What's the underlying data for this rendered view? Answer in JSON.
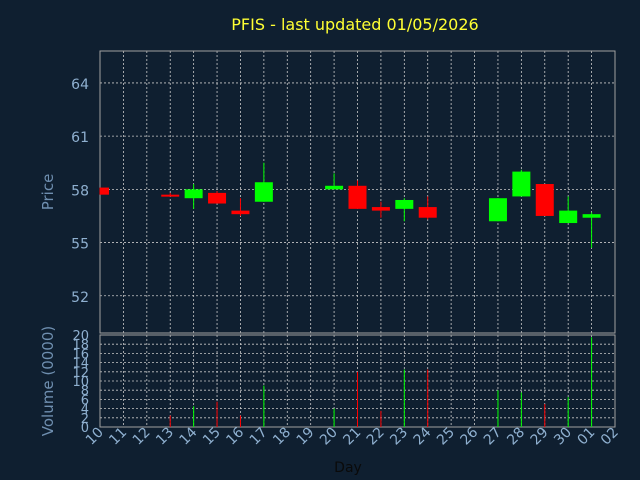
{
  "chart_data": {
    "type": "candlestick",
    "title": "PFIS - last updated 01/05/2026",
    "ylabel_price": "Price",
    "ylabel_volume": "Volume (0000)",
    "xlabel": "Day",
    "x_ticks": [
      "10",
      "11",
      "12",
      "13",
      "14",
      "15",
      "16",
      "17",
      "18",
      "19",
      "20",
      "21",
      "22",
      "23",
      "24",
      "25",
      "26",
      "27",
      "28",
      "29",
      "30",
      "01",
      "02"
    ],
    "price_ticks": [
      52,
      55,
      58,
      61,
      64
    ],
    "price_ylim": [
      49.9,
      65.8
    ],
    "volume_ticks": [
      0,
      2,
      4,
      6,
      8,
      10,
      12,
      14,
      16,
      18,
      20
    ],
    "volume_ylim": [
      0,
      20
    ],
    "grid": true,
    "colors": {
      "up": "#00ff00",
      "down": "#ff0000",
      "grid": "#c8c8c8",
      "axis": "#a0a0a0"
    },
    "candles": [
      {
        "x": "10",
        "open": 58.1,
        "high": 58.1,
        "low": 57.7,
        "close": 57.7,
        "volume": 0.0
      },
      {
        "x": "13",
        "open": 57.7,
        "high": 57.8,
        "low": 57.6,
        "close": 57.65,
        "volume": 2.5
      },
      {
        "x": "14",
        "open": 57.5,
        "high": 58.3,
        "low": 56.9,
        "close": 58.0,
        "volume": 4.5
      },
      {
        "x": "15",
        "open": 57.8,
        "high": 57.9,
        "low": 57.2,
        "close": 57.2,
        "volume": 5.5
      },
      {
        "x": "16",
        "open": 56.8,
        "high": 57.5,
        "low": 56.5,
        "close": 56.6,
        "volume": 2.5
      },
      {
        "x": "17",
        "open": 57.3,
        "high": 59.5,
        "low": 57.3,
        "close": 58.4,
        "volume": 9.0
      },
      {
        "x": "20",
        "open": 58.0,
        "high": 58.9,
        "low": 58.0,
        "close": 58.2,
        "volume": 4.0
      },
      {
        "x": "21",
        "open": 58.2,
        "high": 58.5,
        "low": 56.9,
        "close": 56.9,
        "volume": 12.0
      },
      {
        "x": "22",
        "open": 57.0,
        "high": 57.3,
        "low": 56.4,
        "close": 56.8,
        "volume": 3.5
      },
      {
        "x": "23",
        "open": 56.9,
        "high": 57.5,
        "low": 56.2,
        "close": 57.4,
        "volume": 12.5
      },
      {
        "x": "24",
        "open": 57.0,
        "high": 57.6,
        "low": 56.3,
        "close": 56.4,
        "volume": 12.5
      },
      {
        "x": "27",
        "open": 56.2,
        "high": 57.5,
        "low": 56.2,
        "close": 57.5,
        "volume": 8.0
      },
      {
        "x": "28",
        "open": 57.6,
        "high": 59.1,
        "low": 57.6,
        "close": 59.0,
        "volume": 7.5
      },
      {
        "x": "29",
        "open": 58.3,
        "high": 58.3,
        "low": 56.5,
        "close": 56.5,
        "volume": 5.0
      },
      {
        "x": "30",
        "open": 56.1,
        "high": 57.6,
        "low": 56.1,
        "close": 56.8,
        "volume": 6.5
      },
      {
        "x": "01",
        "open": 56.4,
        "high": 56.7,
        "low": 54.7,
        "close": 56.6,
        "volume": 19.5
      }
    ]
  }
}
